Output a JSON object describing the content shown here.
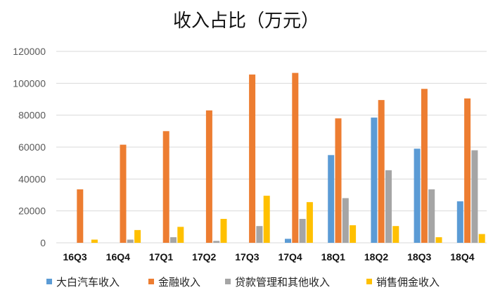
{
  "chart_data": {
    "type": "bar",
    "title": "收入占比（万元）",
    "xlabel": "",
    "ylabel": "",
    "ylim": [
      0,
      120000
    ],
    "yticks": [
      0,
      20000,
      40000,
      60000,
      80000,
      100000,
      120000
    ],
    "ytick_labels": [
      "0",
      "20000",
      "40000",
      "60000",
      "80000",
      "100000",
      "120000"
    ],
    "grid": true,
    "legend_position": "bottom",
    "categories": [
      "16Q3",
      "16Q4",
      "17Q1",
      "17Q2",
      "17Q3",
      "17Q4",
      "18Q1",
      "18Q2",
      "18Q3",
      "18Q4"
    ],
    "series": [
      {
        "name": "大白汽车收入",
        "color": "#5b9bd5",
        "values": [
          0,
          0,
          0,
          0,
          0,
          2500,
          55000,
          78500,
          59000,
          26000
        ]
      },
      {
        "name": "金融收入",
        "color": "#ed7d31",
        "values": [
          33500,
          61500,
          70000,
          83000,
          105500,
          106500,
          78000,
          89500,
          96500,
          90500
        ]
      },
      {
        "name": "贷款管理和其他收入",
        "color": "#a5a5a5",
        "values": [
          0,
          2000,
          3500,
          1200,
          10500,
          15000,
          28000,
          45500,
          33500,
          58000
        ]
      },
      {
        "name": "销售佣金收入",
        "color": "#ffc000",
        "values": [
          2000,
          8000,
          10000,
          15000,
          29500,
          25500,
          11000,
          10500,
          3500,
          5500
        ]
      }
    ]
  }
}
